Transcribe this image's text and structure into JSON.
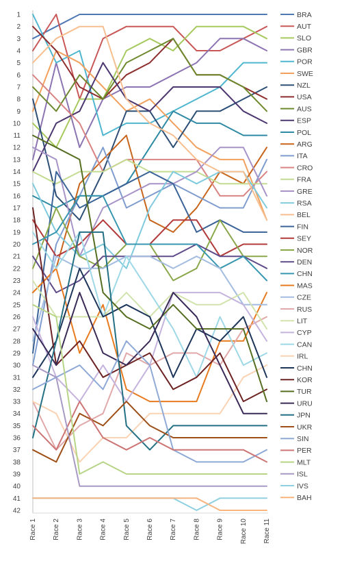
{
  "chart_data": {
    "type": "line",
    "title": "",
    "xlabel": "",
    "ylabel": "",
    "y_inverted": true,
    "ylim": [
      1,
      42
    ],
    "grid": false,
    "legend_position": "right",
    "x": [
      "Race 1",
      "Race 2",
      "Race 3",
      "Race 4",
      "Race 5",
      "Race 6",
      "Race 7",
      "Race 8",
      "Race 9",
      "Race 10",
      "Race 11"
    ],
    "y_ticks": [
      1,
      2,
      3,
      4,
      5,
      6,
      7,
      8,
      9,
      10,
      11,
      12,
      13,
      14,
      15,
      16,
      17,
      18,
      19,
      20,
      21,
      22,
      23,
      24,
      25,
      26,
      27,
      28,
      29,
      30,
      31,
      32,
      33,
      34,
      35,
      36,
      37,
      38,
      39,
      40,
      41,
      42
    ],
    "series": [
      {
        "name": "BRA",
        "color": "#4E79B5",
        "values": [
          3,
          2,
          1,
          1,
          1,
          1,
          1,
          1,
          1,
          1,
          1
        ]
      },
      {
        "name": "AUT",
        "color": "#C95757",
        "values": [
          4,
          1,
          8,
          3,
          2,
          2,
          2,
          4,
          4,
          3,
          2
        ]
      },
      {
        "name": "SLO",
        "color": "#A6C95E",
        "values": [
          10,
          12,
          8,
          8,
          4,
          3,
          4,
          2,
          2,
          2,
          3
        ]
      },
      {
        "name": "GBR",
        "color": "#8C74B2",
        "values": [
          13,
          5,
          12,
          8,
          7,
          7,
          6,
          5,
          3,
          3,
          4
        ]
      },
      {
        "name": "POR",
        "color": "#4FB6CF",
        "values": [
          1,
          5,
          4,
          11,
          10,
          10,
          9,
          8,
          7,
          5,
          5
        ]
      },
      {
        "name": "SWE",
        "color": "#F2A05C",
        "values": [
          9,
          4,
          5,
          7,
          9,
          8,
          10,
          12,
          13,
          13,
          18
        ]
      },
      {
        "name": "NZL",
        "color": "#2D4E75",
        "values": [
          8,
          16,
          18,
          14,
          9,
          9,
          12,
          9,
          9,
          8,
          7
        ]
      },
      {
        "name": "USA",
        "color": "#8E2D2D",
        "values": [
          2,
          4,
          7,
          8,
          6,
          5,
          3,
          6,
          6,
          7,
          8
        ]
      },
      {
        "name": "AUS",
        "color": "#6E8A2E",
        "values": [
          7,
          9,
          6,
          8,
          5,
          4,
          3,
          6,
          6,
          7,
          9
        ]
      },
      {
        "name": "ESP",
        "color": "#4B3670",
        "values": [
          14,
          10,
          9,
          5,
          8,
          9,
          7,
          7,
          7,
          9,
          10
        ]
      },
      {
        "name": "POL",
        "color": "#2E8AA4",
        "values": [
          16,
          17,
          16,
          16,
          15,
          12,
          9,
          10,
          10,
          11,
          11
        ]
      },
      {
        "name": "ARG",
        "color": "#C8651C",
        "values": [
          24,
          22,
          15,
          13,
          11,
          18,
          19,
          17,
          14,
          15,
          12
        ]
      },
      {
        "name": "ITA",
        "color": "#7F9CCE",
        "values": [
          30,
          20,
          16,
          12,
          17,
          16,
          15,
          16,
          17,
          17,
          13
        ]
      },
      {
        "name": "CRO",
        "color": "#D98383",
        "values": [
          6,
          8,
          10,
          14,
          13,
          13,
          13,
          13,
          16,
          16,
          14
        ]
      },
      {
        "name": "FRA",
        "color": "#C4DB92",
        "values": [
          14,
          15,
          14,
          14,
          13,
          14,
          14,
          14,
          15,
          15,
          15
        ]
      },
      {
        "name": "GRE",
        "color": "#A793C8",
        "values": [
          12,
          13,
          21,
          17,
          16,
          15,
          15,
          14,
          12,
          12,
          16
        ]
      },
      {
        "name": "RSA",
        "color": "#7FCADD",
        "values": [
          15,
          19,
          21,
          20,
          22,
          17,
          14,
          15,
          14,
          14,
          17
        ]
      },
      {
        "name": "BEL",
        "color": "#F7BE8F",
        "values": [
          5,
          3,
          2,
          2,
          8,
          10,
          11,
          13,
          14,
          14,
          18
        ]
      },
      {
        "name": "FIN",
        "color": "#3A6398",
        "values": [
          29,
          14,
          17,
          16,
          15,
          14,
          15,
          19,
          18,
          19,
          19
        ]
      },
      {
        "name": "SEY",
        "color": "#B23A3A",
        "values": [
          18,
          21,
          20,
          18,
          20,
          20,
          18,
          18,
          21,
          20,
          20
        ]
      },
      {
        "name": "NOR",
        "color": "#8AA84A",
        "values": [
          22,
          17,
          21,
          22,
          20,
          20,
          23,
          22,
          18,
          21,
          21
        ]
      },
      {
        "name": "DEN",
        "color": "#5F4A8A",
        "values": [
          21,
          24,
          23,
          21,
          21,
          21,
          21,
          20,
          21,
          21,
          22
        ]
      },
      {
        "name": "CHN",
        "color": "#3897B0",
        "values": [
          20,
          19,
          16,
          16,
          20,
          20,
          20,
          20,
          22,
          21,
          23
        ]
      },
      {
        "name": "MAS",
        "color": "#E87A1F",
        "values": [
          24,
          22,
          29,
          25,
          32,
          33,
          33,
          33,
          28,
          28,
          24
        ]
      },
      {
        "name": "CZE",
        "color": "#A3BCE0",
        "values": [
          28,
          21,
          22,
          22,
          21,
          21,
          22,
          21,
          22,
          25,
          25
        ]
      },
      {
        "name": "RUS",
        "color": "#E0A8A8",
        "values": [
          33,
          37,
          35,
          34,
          29,
          30,
          29,
          29,
          30,
          27,
          26
        ]
      },
      {
        "name": "LIT",
        "color": "#D2E3AE",
        "values": [
          23,
          26,
          26,
          26,
          24,
          26,
          24,
          25,
          25,
          24,
          27
        ]
      },
      {
        "name": "CYP",
        "color": "#C4B4DD",
        "values": [
          26,
          31,
          33,
          30,
          33,
          30,
          24,
          24,
          24,
          25,
          28
        ]
      },
      {
        "name": "CAN",
        "color": "#9ED8E6",
        "values": [
          19,
          22,
          19,
          26,
          21,
          24,
          27,
          31,
          26,
          30,
          29
        ]
      },
      {
        "name": "IRL",
        "color": "#FAD3B4",
        "values": [
          33,
          34,
          38,
          36,
          36,
          34,
          34,
          34,
          34,
          31,
          30
        ]
      },
      {
        "name": "CHN",
        "color": "#1C3559",
        "values": [
          31,
          28,
          22,
          26,
          25,
          26,
          31,
          27,
          28,
          26,
          31
        ]
      },
      {
        "name": "KOR",
        "color": "#6E2323",
        "values": [
          17,
          30,
          28,
          31,
          30,
          29,
          32,
          31,
          29,
          33,
          32
        ]
      },
      {
        "name": "TUR",
        "color": "#566E22",
        "values": [
          11,
          12,
          13,
          24,
          26,
          27,
          25,
          27,
          27,
          27,
          33
        ]
      },
      {
        "name": "URU",
        "color": "#3A2A57",
        "values": [
          27,
          30,
          24,
          29,
          30,
          28,
          24,
          26,
          30,
          34,
          34
        ]
      },
      {
        "name": "JPN",
        "color": "#236F84",
        "values": [
          36,
          28,
          19,
          19,
          35,
          37,
          35,
          35,
          35,
          35,
          35
        ]
      },
      {
        "name": "UKR",
        "color": "#9E4F17",
        "values": [
          37,
          38,
          34,
          35,
          33,
          35,
          36,
          36,
          36,
          36,
          36
        ]
      },
      {
        "name": "SIN",
        "color": "#8FA9D6",
        "values": [
          32,
          31,
          30,
          32,
          28,
          30,
          37,
          38,
          38,
          38,
          37
        ]
      },
      {
        "name": "PER",
        "color": "#CD7474",
        "values": [
          35,
          37,
          33,
          36,
          37,
          36,
          37,
          37,
          37,
          37,
          38
        ]
      },
      {
        "name": "MLT",
        "color": "#B7D487",
        "values": [
          25,
          26,
          39,
          38,
          39,
          39,
          39,
          39,
          39,
          39,
          39
        ]
      },
      {
        "name": "ISL",
        "color": "#A899C4",
        "values": [
          30,
          31,
          40,
          40,
          40,
          40,
          40,
          40,
          40,
          40,
          40
        ]
      },
      {
        "name": "IVS",
        "color": "#8FD0E0",
        "values": [
          41,
          41,
          41,
          41,
          41,
          41,
          41,
          42,
          41,
          41,
          41
        ]
      },
      {
        "name": "BAH",
        "color": "#F8B47F",
        "values": [
          41,
          41,
          41,
          41,
          41,
          41,
          41,
          41,
          42,
          42,
          42
        ]
      }
    ]
  }
}
